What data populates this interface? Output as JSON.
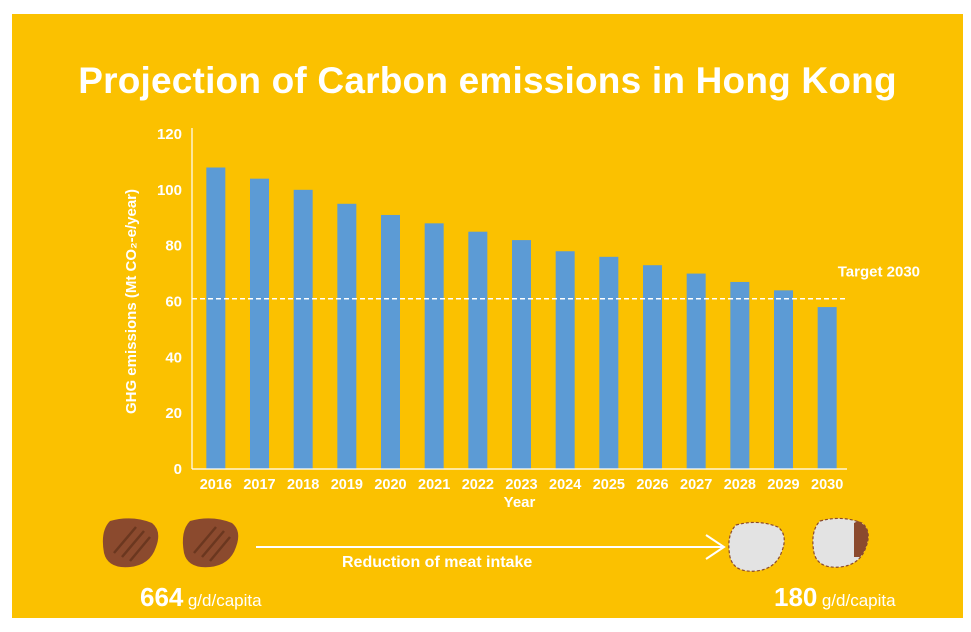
{
  "title": "Projection of Carbon emissions in Hong Kong",
  "colors": {
    "background": "#FBC100",
    "bar": "#5C9BD5",
    "text": "#ffffff",
    "meat": "#8B4A2E",
    "meat_light": "#E3E3E3"
  },
  "chart_data": {
    "type": "bar",
    "categories": [
      "2016",
      "2017",
      "2018",
      "2019",
      "2020",
      "2021",
      "2022",
      "2023",
      "2024",
      "2025",
      "2026",
      "2027",
      "2028",
      "2029",
      "2030"
    ],
    "values": [
      108,
      104,
      100,
      95,
      91,
      88,
      85,
      82,
      78,
      76,
      73,
      70,
      67,
      64,
      58
    ],
    "xlabel": "Year",
    "ylabel": "GHG emissions (Mt CO₂-e/year)",
    "ylim": [
      0,
      120
    ],
    "yticks": [
      0,
      20,
      40,
      60,
      80,
      100,
      120
    ],
    "reference_line": {
      "value": 61,
      "label": "Target 2030",
      "style": "dashed"
    },
    "grid": false,
    "legend": "none"
  },
  "footer": {
    "arrow_label": "Reduction of meat intake",
    "start": {
      "value": "664",
      "unit": "g/d/capita"
    },
    "end": {
      "value": "180",
      "unit": "g/d/capita"
    },
    "icons": [
      "steak-icon",
      "steak-icon",
      "empty-plate-icon",
      "mostly-empty-plate-icon"
    ]
  }
}
